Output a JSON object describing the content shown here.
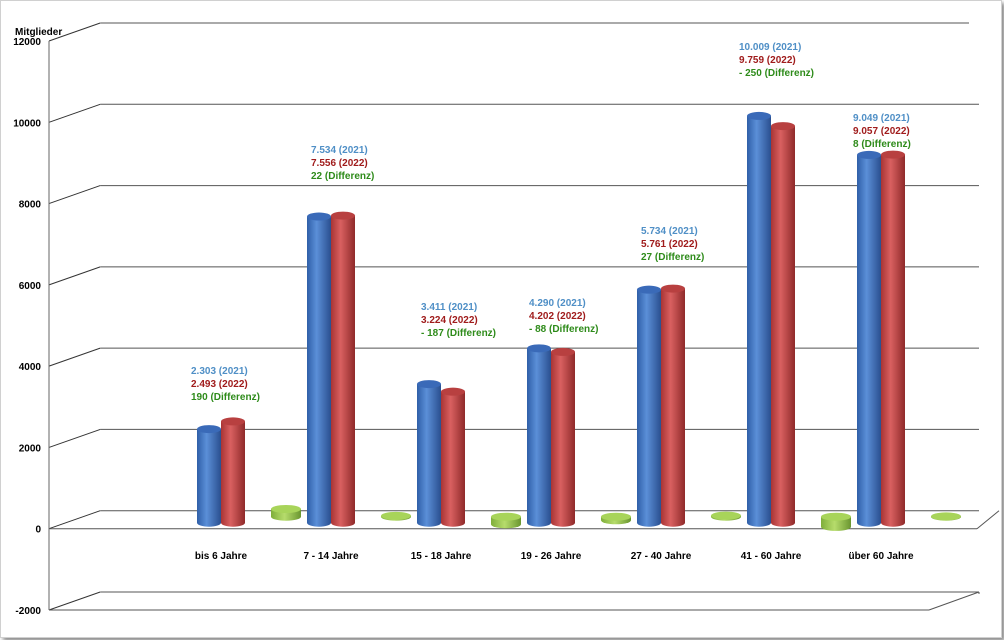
{
  "chart_data": {
    "type": "bar",
    "ylabel": "Mitglieder",
    "ylim": [
      -2000,
      12000
    ],
    "yticks": [
      -2000,
      0,
      2000,
      4000,
      6000,
      8000,
      10000,
      12000
    ],
    "grid": true,
    "categories": [
      "bis 6 Jahre",
      "7 - 14 Jahre",
      "15 - 18 Jahre",
      "19 - 26 Jahre",
      "27 - 40 Jahre",
      "41 - 60 Jahre",
      "über 60 Jahre"
    ],
    "series": [
      {
        "color": "#4a7cc9",
        "values": [
          2303,
          7534,
          3411,
          4290,
          5734,
          10009,
          9049
        ]
      },
      {
        "color": "#c44a4a",
        "values": [
          2493,
          7556,
          3224,
          4202,
          5761,
          9759,
          9057
        ]
      },
      {
        "color": "#9acd4c",
        "values": [
          190,
          22,
          -187,
          -88,
          27,
          -250,
          8
        ]
      }
    ],
    "annotations": [
      {
        "line1": "2.303 (2021)",
        "line2": "2.493 (2022)",
        "line3": "190 (Differenz)"
      },
      {
        "line1": "7.534 (2021)",
        "line2": "7.556 (2022)",
        "line3": "22 (Differenz)"
      },
      {
        "line1": "3.411 (2021)",
        "line2": "3.224 (2022)",
        "line3": "- 187 (Differenz)"
      },
      {
        "line1": "4.290 (2021)",
        "line2": "4.202 (2022)",
        "line3": "- 88 (Differenz)"
      },
      {
        "line1": "5.734 (2021)",
        "line2": "5.761 (2022)",
        "line3": "27 (Differenz)"
      },
      {
        "line1": "10.009 (2021)",
        "line2": "9.759 (2022)",
        "line3": "- 250 (Differenz)"
      },
      {
        "line1": "9.049 (2021)",
        "line2": "9.057 (2022)",
        "line3": "8 (Differenz)"
      }
    ],
    "annotation_colors": [
      "#4f8fc6",
      "#a01c1c",
      "#2e8b1a"
    ]
  }
}
